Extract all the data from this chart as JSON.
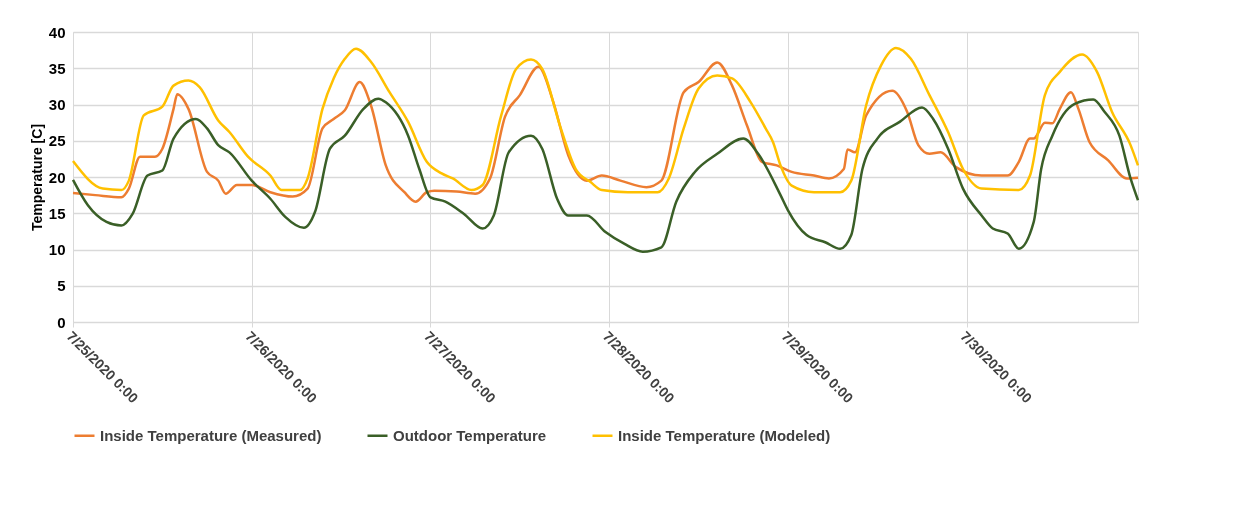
{
  "chart_data": {
    "type": "line",
    "ylabel": "Temperature [C]",
    "ylim": [
      0,
      40
    ],
    "yticks": [
      0,
      5,
      10,
      15,
      20,
      25,
      30,
      35,
      40
    ],
    "xlim": [
      "2020-07-25T00:00",
      "2020-07-30T23:00"
    ],
    "xticks": [
      {
        "value": "2020-07-25T00:00",
        "label": "7/25/2020 0:00"
      },
      {
        "value": "2020-07-26T00:00",
        "label": "7/26/2020 0:00"
      },
      {
        "value": "2020-07-27T00:00",
        "label": "7/27/2020 0:00"
      },
      {
        "value": "2020-07-28T00:00",
        "label": "7/28/2020 0:00"
      },
      {
        "value": "2020-07-29T00:00",
        "label": "7/29/2020 0:00"
      },
      {
        "value": "2020-07-30T00:00",
        "label": "7/30/2020 0:00"
      }
    ],
    "grid": true,
    "legend": "bottom",
    "series": [
      {
        "name": "Inside Temperature (Measured)",
        "color": "#ed7d31",
        "x": [
          "2020-07-25T00:00",
          "2020-07-25T03:00",
          "2020-07-25T06:30",
          "2020-07-25T07:30",
          "2020-07-25T09:00",
          "2020-07-25T11:00",
          "2020-07-25T12:00",
          "2020-07-25T13:30",
          "2020-07-25T14:00",
          "2020-07-25T15:30",
          "2020-07-25T18:00",
          "2020-07-25T19:30",
          "2020-07-25T20:30",
          "2020-07-25T22:00",
          "2020-07-26T00:00",
          "2020-07-26T02:30",
          "2020-07-26T05:30",
          "2020-07-26T07:30",
          "2020-07-26T09:30",
          "2020-07-26T11:00",
          "2020-07-26T12:30",
          "2020-07-26T14:30",
          "2020-07-26T16:00",
          "2020-07-26T18:00",
          "2020-07-26T20:30",
          "2020-07-26T22:00",
          "2020-07-26T23:30",
          "2020-07-27T00:30",
          "2020-07-27T03:30",
          "2020-07-27T06:00",
          "2020-07-27T08:00",
          "2020-07-27T10:00",
          "2020-07-27T12:00",
          "2020-07-27T14:30",
          "2020-07-27T16:30",
          "2020-07-27T18:30",
          "2020-07-27T21:00",
          "2020-07-27T23:00",
          "2020-07-28T01:30",
          "2020-07-28T05:00",
          "2020-07-28T07:00",
          "2020-07-28T10:00",
          "2020-07-28T12:00",
          "2020-07-28T14:30",
          "2020-07-28T16:30",
          "2020-07-28T18:30",
          "2020-07-28T20:30",
          "2020-07-28T22:30",
          "2020-07-29T00:30",
          "2020-07-29T03:30",
          "2020-07-29T05:30",
          "2020-07-29T07:30",
          "2020-07-29T08:00",
          "2020-07-29T09:00",
          "2020-07-29T10:30",
          "2020-07-29T14:00",
          "2020-07-29T16:00",
          "2020-07-29T17:30",
          "2020-07-29T19:00",
          "2020-07-29T20:30",
          "2020-07-29T22:30",
          "2020-07-30T02:00",
          "2020-07-30T05:30",
          "2020-07-30T07:00",
          "2020-07-30T08:30",
          "2020-07-30T09:00",
          "2020-07-30T10:30",
          "2020-07-30T11:30",
          "2020-07-30T12:30",
          "2020-07-30T14:00",
          "2020-07-30T15:00",
          "2020-07-30T16:30",
          "2020-07-30T19:00",
          "2020-07-30T21:30",
          "2020-07-30T23:00"
        ],
        "values": [
          17.8,
          17.5,
          17.2,
          18.4,
          22.8,
          22.8,
          23.9,
          29.4,
          31.4,
          29.4,
          20.7,
          19.5,
          17.7,
          18.9,
          18.9,
          17.9,
          17.3,
          18.4,
          26.7,
          28,
          29.2,
          33.1,
          29.9,
          21.6,
          17.9,
          16.6,
          17.9,
          18.1,
          18,
          17.7,
          19.8,
          28.3,
          31.3,
          35.2,
          30.3,
          23,
          19.5,
          20.2,
          19.5,
          18.6,
          19.5,
          31.7,
          33.1,
          35.8,
          32.6,
          27.1,
          22.1,
          21.6,
          20.7,
          20.2,
          19.8,
          21.1,
          23.8,
          23.4,
          28.5,
          31.9,
          29,
          24.4,
          23.2,
          23.4,
          21.4,
          20.2,
          20.2,
          22.1,
          25.3,
          25.3,
          27.5,
          27.4,
          29.4,
          31.7,
          29.4,
          24.8,
          22.3,
          19.8,
          19.9
        ]
      },
      {
        "name": "Outdoor Temperature",
        "color": "#3a5f27",
        "x": [
          "2020-07-25T00:00",
          "2020-07-25T02:00",
          "2020-07-25T04:30",
          "2020-07-25T06:30",
          "2020-07-25T08:00",
          "2020-07-25T10:00",
          "2020-07-25T12:00",
          "2020-07-25T13:30",
          "2020-07-25T16:30",
          "2020-07-25T18:00",
          "2020-07-25T19:30",
          "2020-07-25T21:00",
          "2020-07-26T00:00",
          "2020-07-26T02:30",
          "2020-07-26T04:30",
          "2020-07-26T07:00",
          "2020-07-26T08:30",
          "2020-07-26T10:30",
          "2020-07-26T12:30",
          "2020-07-26T15:00",
          "2020-07-26T17:00",
          "2020-07-26T18:00",
          "2020-07-26T21:00",
          "2020-07-26T22:30",
          "2020-07-27T00:00",
          "2020-07-27T02:00",
          "2020-07-27T04:30",
          "2020-07-27T07:00",
          "2020-07-27T08:30",
          "2020-07-27T10:30",
          "2020-07-27T13:30",
          "2020-07-27T15:00",
          "2020-07-27T17:00",
          "2020-07-27T18:30",
          "2020-07-27T21:00",
          "2020-07-27T23:30",
          "2020-07-28T02:00",
          "2020-07-28T04:30",
          "2020-07-28T07:00",
          "2020-07-28T09:00",
          "2020-07-28T11:30",
          "2020-07-28T14:30",
          "2020-07-28T18:00",
          "2020-07-28T20:00",
          "2020-07-28T23:00",
          "2020-07-29T00:00",
          "2020-07-29T02:30",
          "2020-07-29T05:00",
          "2020-07-29T07:00",
          "2020-07-29T08:30",
          "2020-07-29T10:00",
          "2020-07-29T12:00",
          "2020-07-29T15:00",
          "2020-07-29T18:00",
          "2020-07-29T19:30",
          "2020-07-29T21:30",
          "2020-07-29T23:30",
          "2020-07-30T02:00",
          "2020-07-30T03:30",
          "2020-07-30T05:30",
          "2020-07-30T07:00",
          "2020-07-30T09:00",
          "2020-07-30T10:00",
          "2020-07-30T11:30",
          "2020-07-30T14:30",
          "2020-07-30T17:00",
          "2020-07-30T18:30",
          "2020-07-30T20:30",
          "2020-07-30T22:00",
          "2020-07-30T23:00"
        ],
        "values": [
          19.6,
          16.1,
          13.8,
          13.3,
          14.9,
          20.2,
          20.9,
          25.3,
          28,
          26.7,
          24.4,
          23.4,
          19.5,
          17,
          14.5,
          13,
          15.2,
          23.9,
          25.7,
          29.4,
          30.8,
          30.3,
          25.7,
          21.1,
          17.2,
          16.6,
          14.9,
          12.9,
          14.7,
          23.4,
          25.7,
          23.9,
          17,
          14.7,
          14.7,
          12.4,
          10.8,
          9.7,
          10.3,
          16.6,
          20.7,
          23.2,
          25.3,
          23.2,
          17.5,
          15.4,
          12,
          11,
          10.1,
          12,
          21.1,
          25.3,
          27.6,
          29.6,
          28,
          23.9,
          18.4,
          14.7,
          12.9,
          12.2,
          10.1,
          13.8,
          21.1,
          25.7,
          30.1,
          30.7,
          29,
          25.7,
          19.8,
          16.8
        ]
      },
      {
        "name": "Inside Temperature (Modeled)",
        "color": "#ffc000",
        "x": [
          "2020-07-25T00:00",
          "2020-07-25T04:00",
          "2020-07-25T06:30",
          "2020-07-25T07:30",
          "2020-07-25T09:30",
          "2020-07-25T12:00",
          "2020-07-25T13:30",
          "2020-07-25T15:30",
          "2020-07-25T17:00",
          "2020-07-25T19:30",
          "2020-07-25T21:00",
          "2020-07-25T23:30",
          "2020-07-26T02:30",
          "2020-07-26T04:00",
          "2020-07-26T06:30",
          "2020-07-26T07:30",
          "2020-07-26T09:30",
          "2020-07-26T11:00",
          "2020-07-26T12:30",
          "2020-07-26T14:00",
          "2020-07-26T16:00",
          "2020-07-26T18:30",
          "2020-07-26T21:00",
          "2020-07-26T23:30",
          "2020-07-27T01:30",
          "2020-07-27T03:00",
          "2020-07-27T05:30",
          "2020-07-27T07:00",
          "2020-07-27T09:30",
          "2020-07-27T11:30",
          "2020-07-27T13:30",
          "2020-07-27T15:00",
          "2020-07-27T17:30",
          "2020-07-27T19:30",
          "2020-07-27T21:30",
          "2020-07-27T23:00",
          "2020-07-28T02:30",
          "2020-07-28T06:30",
          "2020-07-28T08:00",
          "2020-07-28T10:00",
          "2020-07-28T12:00",
          "2020-07-28T14:30",
          "2020-07-28T16:30",
          "2020-07-28T19:00",
          "2020-07-28T21:00",
          "2020-07-28T22:00",
          "2020-07-28T23:00",
          "2020-07-29T00:30",
          "2020-07-29T03:30",
          "2020-07-29T07:00",
          "2020-07-29T08:30",
          "2020-07-29T10:30",
          "2020-07-29T12:30",
          "2020-07-29T14:30",
          "2020-07-29T16:30",
          "2020-07-29T19:00",
          "2020-07-29T21:30",
          "2020-07-29T23:30",
          "2020-07-30T02:00",
          "2020-07-30T07:00",
          "2020-07-30T08:30",
          "2020-07-30T10:30",
          "2020-07-30T12:30",
          "2020-07-30T15:30",
          "2020-07-30T17:30",
          "2020-07-30T19:30",
          "2020-07-30T22:00",
          "2020-07-30T23:00"
        ],
        "values": [
          22.2,
          18.4,
          18.2,
          19.5,
          28.5,
          29.7,
          32.6,
          33.3,
          32.4,
          27.8,
          26.2,
          22.8,
          20.2,
          18.2,
          18.2,
          19.8,
          29.4,
          33.6,
          36.3,
          37.7,
          35.9,
          31.7,
          27.6,
          22.1,
          20.5,
          19.8,
          18.2,
          18.9,
          28.5,
          34.9,
          36.2,
          34.9,
          26.7,
          21.1,
          19.3,
          18.2,
          17.9,
          17.9,
          19.8,
          26.7,
          32.2,
          34,
          33.6,
          30.3,
          26.7,
          24.8,
          21.6,
          18.8,
          17.9,
          17.9,
          19.5,
          29.9,
          35.4,
          37.8,
          36.3,
          31.3,
          26.2,
          21.1,
          18.4,
          18.2,
          20.2,
          31.3,
          34.5,
          36.9,
          34.5,
          29,
          24.4,
          21.6
        ]
      }
    ]
  }
}
